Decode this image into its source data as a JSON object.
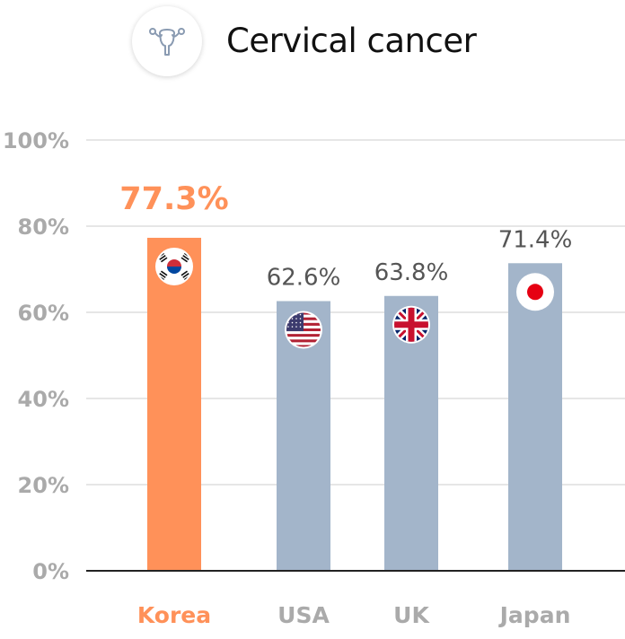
{
  "header": {
    "title": "Cervical cancer",
    "icon": "uterus-icon"
  },
  "colors": {
    "highlight": "#ff9159",
    "bar": "#a3b5ca",
    "grid": "#dddddd",
    "axis": "#222222",
    "tick": "#aaaaaa",
    "value": "#555555"
  },
  "chart_data": {
    "type": "bar",
    "title": "Cervical cancer",
    "categories": [
      "Korea",
      "USA",
      "UK",
      "Japan"
    ],
    "values": [
      77.3,
      62.6,
      63.8,
      71.4
    ],
    "value_labels": [
      "77.3%",
      "62.6%",
      "63.8%",
      "71.4%"
    ],
    "highlight_index": 0,
    "flags": [
      "korea-flag-icon",
      "usa-flag-icon",
      "uk-flag-icon",
      "japan-flag-icon"
    ],
    "yticks": [
      "0%",
      "20%",
      "40%",
      "60%",
      "80%",
      "100%"
    ],
    "ytick_values": [
      0,
      20,
      40,
      60,
      80,
      100
    ],
    "ylim": [
      0,
      100
    ],
    "xlabel": "",
    "ylabel": "",
    "grid": true
  }
}
